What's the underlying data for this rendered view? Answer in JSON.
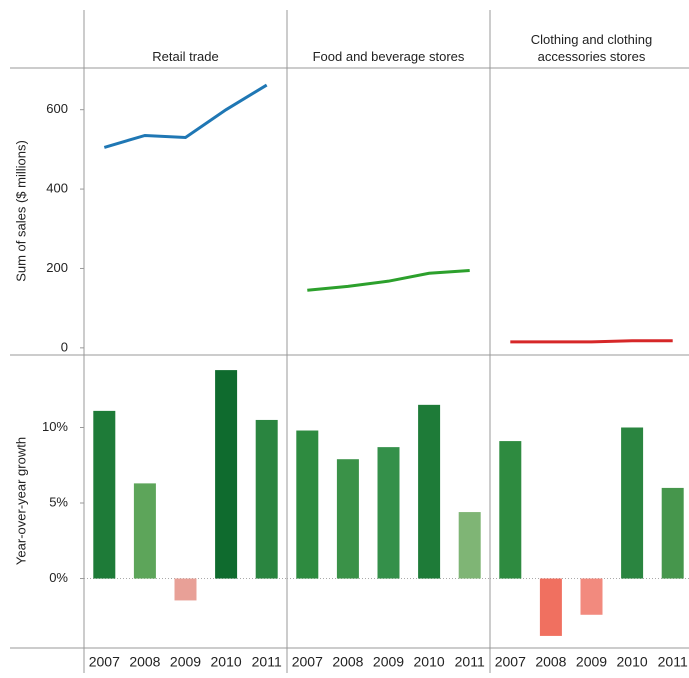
{
  "chart_data": [
    {
      "type": "line",
      "y_label": "Sum of sales ($ millions)",
      "categories": [
        "2007",
        "2008",
        "2009",
        "2010",
        "2011"
      ],
      "ylim": [
        -18,
        705
      ],
      "yticks": [
        0,
        200,
        400,
        600
      ],
      "series": [
        {
          "name": "Retail trade",
          "color": "#1f77b4",
          "values": [
            505,
            535,
            530,
            600,
            662
          ]
        },
        {
          "name": "Food and beverage stores",
          "color": "#2ca02c",
          "values": [
            145,
            155,
            168,
            188,
            195
          ]
        },
        {
          "name": "Clothing and clothing accessories stores",
          "color": "#d62728",
          "values": [
            15,
            15,
            15,
            18,
            18
          ]
        }
      ]
    },
    {
      "type": "bar",
      "y_label": "Year-over-year growth",
      "categories": [
        "2007",
        "2008",
        "2009",
        "2010",
        "2011"
      ],
      "ylim": [
        -4.6,
        14.8
      ],
      "yticks": [
        {
          "value": 0,
          "label": "0%"
        },
        {
          "value": 5,
          "label": "5%"
        },
        {
          "value": 10,
          "label": "10%"
        }
      ],
      "series": [
        {
          "values": [
            11.1,
            6.3,
            -1.45,
            13.8,
            10.5
          ],
          "colors": [
            "#1e7b38",
            "#5da55a",
            "#e8a097",
            "#0f6b2e",
            "#2a8540"
          ]
        },
        {
          "values": [
            9.8,
            7.9,
            8.7,
            11.5,
            4.4
          ],
          "colors": [
            "#2e8b40",
            "#3a9248",
            "#34904a",
            "#1e7b38",
            "#7fb575"
          ]
        },
        {
          "values": [
            9.1,
            -3.8,
            -2.4,
            10.0,
            6.0
          ],
          "colors": [
            "#2e8b40",
            "#f07060",
            "#f28a7e",
            "#2a8540",
            "#46964c"
          ]
        }
      ]
    }
  ]
}
